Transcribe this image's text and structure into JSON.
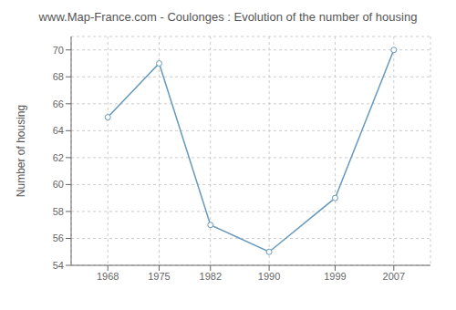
{
  "chart_data": {
    "type": "line",
    "title": "www.Map-France.com - Coulonges : Evolution of the number of housing",
    "ylabel": "Number of housing",
    "x": [
      1968,
      1975,
      1982,
      1990,
      1999,
      2007
    ],
    "values": [
      65,
      69,
      57,
      55,
      59,
      70
    ],
    "color": "#6699bb",
    "marker": "circle",
    "xlim": [
      1963,
      2012
    ],
    "xticks": [
      1968,
      1975,
      1982,
      1990,
      1999,
      2007
    ],
    "ylim": [
      54,
      71
    ],
    "yticks": [
      54,
      56,
      58,
      60,
      62,
      64,
      66,
      68,
      70
    ],
    "grid": true
  }
}
